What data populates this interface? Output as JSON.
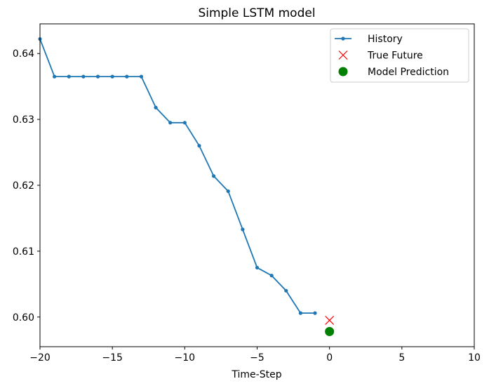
{
  "chart_data": {
    "type": "line",
    "title": "Simple LSTM model",
    "xlabel": "Time-Step",
    "ylabel": "",
    "xlim": [
      -20,
      10
    ],
    "ylim": [
      0.5955,
      0.6445
    ],
    "xticks": [
      -20,
      -15,
      -10,
      -5,
      0,
      5,
      10
    ],
    "xtick_labels": [
      "−20",
      "−15",
      "−10",
      "−5",
      "0",
      "5",
      "10"
    ],
    "yticks": [
      0.6,
      0.61,
      0.62,
      0.63,
      0.64
    ],
    "ytick_labels": [
      "0.60",
      "0.61",
      "0.62",
      "0.63",
      "0.64"
    ],
    "grid": false,
    "legend_position": "top-right",
    "series": [
      {
        "name": "History",
        "kind": "line-dots",
        "color": "#1f77b4",
        "x": [
          -20,
          -19,
          -18,
          -17,
          -16,
          -15,
          -14,
          -13,
          -12,
          -11,
          -10,
          -9,
          -8,
          -7,
          -6,
          -5,
          -4,
          -3,
          -2,
          -1
        ],
        "y": [
          0.6422,
          0.6365,
          0.6365,
          0.6365,
          0.6365,
          0.6365,
          0.6365,
          0.6365,
          0.6318,
          0.6295,
          0.6295,
          0.626,
          0.6214,
          0.6191,
          0.6133,
          0.6075,
          0.6063,
          0.604,
          0.6006,
          0.6006
        ]
      },
      {
        "name": "True Future",
        "kind": "x-marker",
        "color": "#ff0000",
        "x": [
          0
        ],
        "y": [
          0.5995
        ]
      },
      {
        "name": "Model Prediction",
        "kind": "circle-marker",
        "color": "#008000",
        "x": [
          0
        ],
        "y": [
          0.5978
        ]
      }
    ]
  }
}
